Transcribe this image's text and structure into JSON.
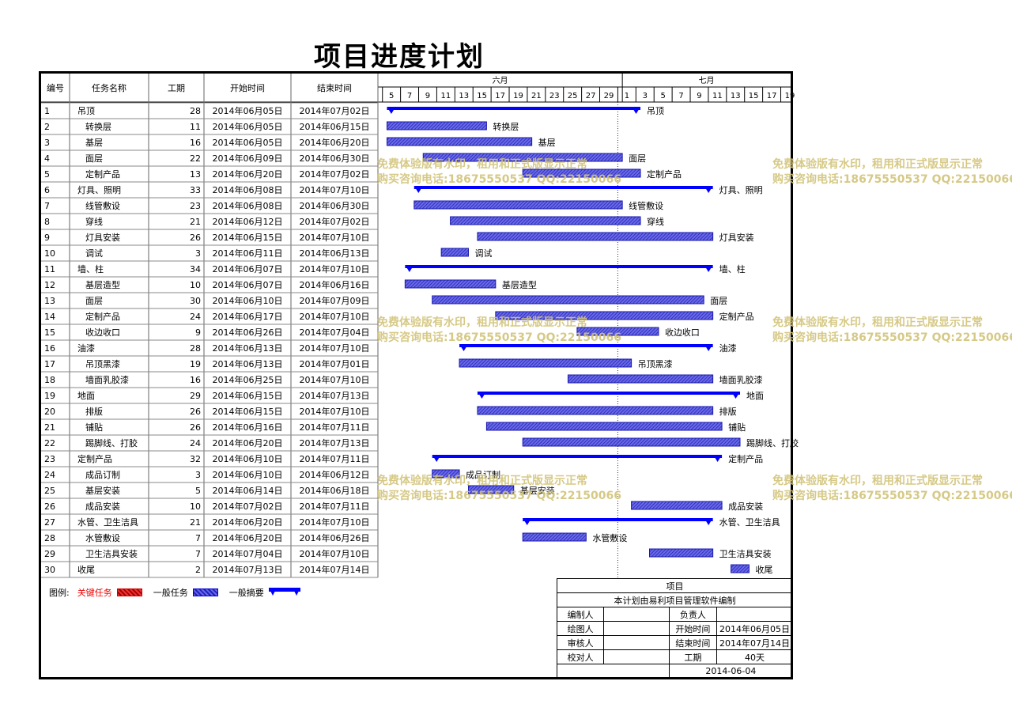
{
  "title": "项目进度计划",
  "headers": {
    "id": "编号",
    "name": "任务名称",
    "duration": "工期",
    "start": "开始时间",
    "end": "结束时间"
  },
  "months": [
    "六月",
    "七月"
  ],
  "day_ticks": [
    "5",
    "7",
    "9",
    "11",
    "13",
    "15",
    "17",
    "19",
    "21",
    "23",
    "25",
    "27",
    "29",
    "1",
    "3",
    "5",
    "7",
    "9",
    "11",
    "13",
    "15",
    "17",
    "19"
  ],
  "colors": {
    "task_bar": "#2d2dd8",
    "summary_bar": "#0000ff",
    "critical": "#e03030",
    "watermark": "#d2c47a"
  },
  "chart_data": {
    "type": "gantt",
    "x_axis_start": "2014-06-04",
    "x_axis_end": "2014-07-20",
    "today_line": "2014-06-30",
    "tasks": [
      {
        "id": "1",
        "name": "吊顶",
        "duration": "28",
        "start": "2014年06月05日",
        "end": "2014年07月02日",
        "s": "2014-06-05",
        "e": "2014-07-02",
        "summary": true,
        "indent": false
      },
      {
        "id": "2",
        "name": "转换层",
        "duration": "11",
        "start": "2014年06月05日",
        "end": "2014年06月15日",
        "s": "2014-06-05",
        "e": "2014-06-15",
        "summary": false,
        "indent": true
      },
      {
        "id": "3",
        "name": "基层",
        "duration": "16",
        "start": "2014年06月05日",
        "end": "2014年06月20日",
        "s": "2014-06-05",
        "e": "2014-06-20",
        "summary": false,
        "indent": true
      },
      {
        "id": "4",
        "name": "面层",
        "duration": "22",
        "start": "2014年06月09日",
        "end": "2014年06月30日",
        "s": "2014-06-09",
        "e": "2014-06-30",
        "summary": false,
        "indent": true
      },
      {
        "id": "5",
        "name": "定制产品",
        "duration": "13",
        "start": "2014年06月20日",
        "end": "2014年07月02日",
        "s": "2014-06-20",
        "e": "2014-07-02",
        "summary": false,
        "indent": true
      },
      {
        "id": "6",
        "name": "灯具、照明",
        "duration": "33",
        "start": "2014年06月08日",
        "end": "2014年07月10日",
        "s": "2014-06-08",
        "e": "2014-07-10",
        "summary": true,
        "indent": false
      },
      {
        "id": "7",
        "name": "线管敷设",
        "duration": "23",
        "start": "2014年06月08日",
        "end": "2014年06月30日",
        "s": "2014-06-08",
        "e": "2014-06-30",
        "summary": false,
        "indent": true
      },
      {
        "id": "8",
        "name": "穿线",
        "duration": "21",
        "start": "2014年06月12日",
        "end": "2014年07月02日",
        "s": "2014-06-12",
        "e": "2014-07-02",
        "summary": false,
        "indent": true
      },
      {
        "id": "9",
        "name": "灯具安装",
        "duration": "26",
        "start": "2014年06月15日",
        "end": "2014年07月10日",
        "s": "2014-06-15",
        "e": "2014-07-10",
        "summary": false,
        "indent": true
      },
      {
        "id": "10",
        "name": "调试",
        "duration": "3",
        "start": "2014年06月11日",
        "end": "2014年06月13日",
        "s": "2014-06-11",
        "e": "2014-06-13",
        "summary": false,
        "indent": true
      },
      {
        "id": "11",
        "name": "墙、柱",
        "duration": "34",
        "start": "2014年06月07日",
        "end": "2014年07月10日",
        "s": "2014-06-07",
        "e": "2014-07-10",
        "summary": true,
        "indent": false
      },
      {
        "id": "12",
        "name": "基层造型",
        "duration": "10",
        "start": "2014年06月07日",
        "end": "2014年06月16日",
        "s": "2014-06-07",
        "e": "2014-06-16",
        "summary": false,
        "indent": true
      },
      {
        "id": "13",
        "name": "面层",
        "duration": "30",
        "start": "2014年06月10日",
        "end": "2014年07月09日",
        "s": "2014-06-10",
        "e": "2014-07-09",
        "summary": false,
        "indent": true
      },
      {
        "id": "14",
        "name": "定制产品",
        "duration": "24",
        "start": "2014年06月17日",
        "end": "2014年07月10日",
        "s": "2014-06-17",
        "e": "2014-07-10",
        "summary": false,
        "indent": true
      },
      {
        "id": "15",
        "name": "收边收口",
        "duration": "9",
        "start": "2014年06月26日",
        "end": "2014年07月04日",
        "s": "2014-06-26",
        "e": "2014-07-04",
        "summary": false,
        "indent": true
      },
      {
        "id": "16",
        "name": "油漆",
        "duration": "28",
        "start": "2014年06月13日",
        "end": "2014年07月10日",
        "s": "2014-06-13",
        "e": "2014-07-10",
        "summary": true,
        "indent": false
      },
      {
        "id": "17",
        "name": "吊顶黑漆",
        "duration": "19",
        "start": "2014年06月13日",
        "end": "2014年07月01日",
        "s": "2014-06-13",
        "e": "2014-07-01",
        "summary": false,
        "indent": true
      },
      {
        "id": "18",
        "name": "墙面乳胶漆",
        "duration": "16",
        "start": "2014年06月25日",
        "end": "2014年07月10日",
        "s": "2014-06-25",
        "e": "2014-07-10",
        "summary": false,
        "indent": true
      },
      {
        "id": "19",
        "name": "地面",
        "duration": "29",
        "start": "2014年06月15日",
        "end": "2014年07月13日",
        "s": "2014-06-15",
        "e": "2014-07-13",
        "summary": true,
        "indent": false
      },
      {
        "id": "20",
        "name": "排版",
        "duration": "26",
        "start": "2014年06月15日",
        "end": "2014年07月10日",
        "s": "2014-06-15",
        "e": "2014-07-10",
        "summary": false,
        "indent": true
      },
      {
        "id": "21",
        "name": "铺贴",
        "duration": "26",
        "start": "2014年06月16日",
        "end": "2014年07月11日",
        "s": "2014-06-16",
        "e": "2014-07-11",
        "summary": false,
        "indent": true
      },
      {
        "id": "22",
        "name": "踢脚线、打胶",
        "duration": "24",
        "start": "2014年06月20日",
        "end": "2014年07月13日",
        "s": "2014-06-20",
        "e": "2014-07-13",
        "summary": false,
        "indent": true
      },
      {
        "id": "23",
        "name": "定制产品",
        "duration": "32",
        "start": "2014年06月10日",
        "end": "2014年07月11日",
        "s": "2014-06-10",
        "e": "2014-07-11",
        "summary": true,
        "indent": false
      },
      {
        "id": "24",
        "name": "成品订制",
        "duration": "3",
        "start": "2014年06月10日",
        "end": "2014年06月12日",
        "s": "2014-06-10",
        "e": "2014-06-12",
        "summary": false,
        "indent": true
      },
      {
        "id": "25",
        "name": "基层安装",
        "duration": "5",
        "start": "2014年06月14日",
        "end": "2014年06月18日",
        "s": "2014-06-14",
        "e": "2014-06-18",
        "summary": false,
        "indent": true
      },
      {
        "id": "26",
        "name": "成品安装",
        "duration": "10",
        "start": "2014年07月02日",
        "end": "2014年07月11日",
        "s": "2014-07-02",
        "e": "2014-07-11",
        "summary": false,
        "indent": true
      },
      {
        "id": "27",
        "name": "水管、卫生洁具",
        "duration": "21",
        "start": "2014年06月20日",
        "end": "2014年07月10日",
        "s": "2014-06-20",
        "e": "2014-07-10",
        "summary": true,
        "indent": false
      },
      {
        "id": "28",
        "name": "水管敷设",
        "duration": "7",
        "start": "2014年06月20日",
        "end": "2014年06月26日",
        "s": "2014-06-20",
        "e": "2014-06-26",
        "summary": false,
        "indent": true
      },
      {
        "id": "29",
        "name": "卫生洁具安装",
        "duration": "7",
        "start": "2014年07月04日",
        "end": "2014年07月10日",
        "s": "2014-07-04",
        "e": "2014-07-10",
        "summary": false,
        "indent": true
      },
      {
        "id": "30",
        "name": "收尾",
        "duration": "2",
        "start": "2014年07月13日",
        "end": "2014年07月14日",
        "s": "2014-07-13",
        "e": "2014-07-14",
        "summary": false,
        "indent": false
      }
    ]
  },
  "legend": {
    "label": "图例:",
    "critical": "关键任务",
    "normal": "一般任务",
    "summary": "一般摘要"
  },
  "info": {
    "project_label": "项目",
    "note": "本计划由易利项目管理软件编制",
    "editor_label": "编制人",
    "owner_label": "负责人",
    "drawer_label": "绘图人",
    "start_label": "开始时间",
    "start_value": "2014年06月05日",
    "reviewer_label": "审核人",
    "end_label": "结束时间",
    "end_value": "2014年07月14日",
    "checker_label": "校对人",
    "duration_label": "工期",
    "duration_value": "40天",
    "date": "2014-06-04"
  },
  "watermark": {
    "line1": "免费体验版有水印，租用和正式版显示正常",
    "line2": "购买咨询电话:18675550537 QQ:22150066"
  }
}
